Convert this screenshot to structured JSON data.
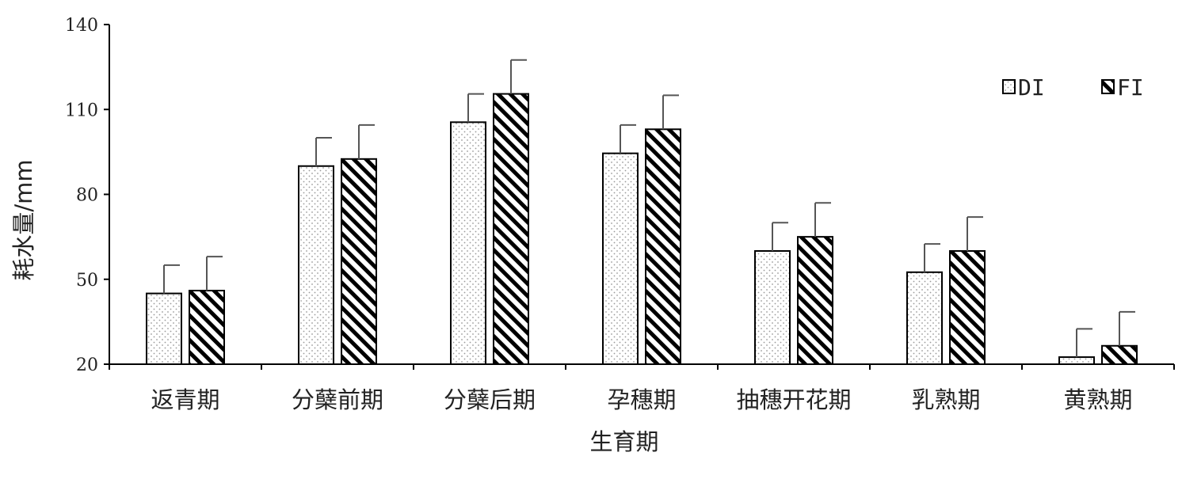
{
  "chart_data": {
    "type": "bar",
    "title": "",
    "xlabel": "生育期",
    "ylabel": "耗水量/mm",
    "ylim": [
      20,
      140
    ],
    "yticks": [
      20,
      50,
      80,
      110,
      140
    ],
    "categories": [
      "返青期",
      "分蘖前期",
      "分蘖后期",
      "孕穗期",
      "抽穗开花期",
      "乳熟期",
      "黄熟期"
    ],
    "series": [
      {
        "name": "DI",
        "pattern": "dots",
        "values": [
          45,
          90,
          105.5,
          94.5,
          60,
          52.5,
          22.5
        ],
        "errors": [
          10,
          10,
          10,
          10,
          10,
          10,
          10
        ]
      },
      {
        "name": "FI",
        "pattern": "hatch",
        "values": [
          46,
          92.5,
          115.5,
          103,
          65,
          60,
          26.5
        ],
        "errors": [
          12,
          12,
          12,
          12,
          12,
          12,
          12
        ]
      }
    ],
    "legend": {
      "placement": "top-right"
    },
    "grid": false,
    "colors": {
      "bar_fill": "#ffffff",
      "stroke": "#000000",
      "error_bar": "#555555"
    }
  }
}
